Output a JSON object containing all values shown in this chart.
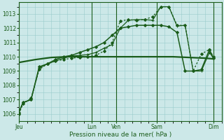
{
  "background_color": "#cce8e8",
  "grid_color": "#99cccc",
  "line_color": "#1a5c1a",
  "xlabel": "Pression niveau de la mer( hPa )",
  "ylim": [
    1005.5,
    1013.8
  ],
  "yticks": [
    1006,
    1007,
    1008,
    1009,
    1010,
    1011,
    1012,
    1013
  ],
  "x_day_labels": [
    "Jeu",
    "Lun",
    "Ven",
    "Sam",
    "Dim"
  ],
  "x_day_positions": [
    0,
    9,
    12,
    17,
    24
  ],
  "xlim": [
    0,
    25
  ],
  "series": [
    {
      "x": [
        0,
        0.5,
        1.5,
        2.5,
        3.5,
        4.5,
        5.5,
        6.5,
        7.5,
        8.5,
        9.5,
        10.5,
        11.5,
        12.5,
        13.5,
        14.5,
        15.5,
        16.5,
        17.5,
        18.5,
        19.5,
        20.5,
        21.5,
        22.5,
        23.5,
        24
      ],
      "y": [
        1006.0,
        1006.7,
        1007.1,
        1009.1,
        1009.5,
        1009.7,
        1009.8,
        1009.9,
        1009.95,
        1010.0,
        1010.1,
        1010.4,
        1011.0,
        1012.5,
        1012.6,
        1012.55,
        1012.6,
        1012.8,
        1013.5,
        1013.5,
        1012.2,
        1012.2,
        1009.0,
        1010.2,
        1010.5,
        1010.0
      ],
      "style": "dotted",
      "marker": "D",
      "markersize": 2,
      "linewidth": 0.9
    },
    {
      "x": [
        0,
        0.5,
        1.5,
        2.5,
        3.5,
        4.5,
        5.5,
        6.5,
        7.5,
        8.5,
        9.5,
        10.5,
        11.5,
        12.5,
        13.5,
        14.5,
        15.5,
        16.5,
        17.5,
        18.5,
        19.5,
        20.5,
        21.5,
        22.5,
        23.5,
        24
      ],
      "y": [
        1006.1,
        1006.8,
        1007.0,
        1009.2,
        1009.5,
        1009.7,
        1009.9,
        1010.05,
        1010.1,
        1010.15,
        1010.3,
        1010.6,
        1010.85,
        1012.0,
        1012.55,
        1012.6,
        1012.6,
        1012.55,
        1013.5,
        1013.5,
        1012.15,
        1012.2,
        1009.0,
        1009.0,
        1010.3,
        1009.9
      ],
      "style": "solid",
      "marker": "+",
      "markersize": 3.5,
      "linewidth": 0.9
    },
    {
      "x": [
        0,
        0.5,
        1.5,
        2.5,
        3.5,
        4.5,
        5.5,
        6.5,
        7.5,
        8.5,
        9.5,
        10.5,
        11.5,
        12.5,
        13.5,
        14.5,
        15.5,
        16.5,
        17.5,
        18.5,
        19.5,
        20.5,
        21.5,
        22.5,
        23.5,
        24
      ],
      "y": [
        1006.1,
        1006.8,
        1007.0,
        1009.3,
        1009.5,
        1009.8,
        1010.0,
        1010.1,
        1010.3,
        1010.5,
        1010.7,
        1011.0,
        1011.5,
        1012.0,
        1012.1,
        1012.2,
        1012.2,
        1012.2,
        1012.2,
        1012.1,
        1011.7,
        1009.0,
        1009.0,
        1009.1,
        1010.5,
        1009.9
      ],
      "style": "solid",
      "marker": "D",
      "markersize": 2,
      "linewidth": 1.1
    },
    {
      "x": [
        0,
        2,
        4,
        6,
        8,
        9,
        12,
        15,
        17,
        19,
        21,
        23,
        24
      ],
      "y": [
        1009.6,
        1009.8,
        1009.95,
        1010.0,
        1010.0,
        1010.0,
        1010.0,
        1010.0,
        1010.0,
        1010.0,
        1009.95,
        1009.9,
        1009.85
      ],
      "style": "solid",
      "marker": null,
      "markersize": 0,
      "linewidth": 1.6
    }
  ]
}
